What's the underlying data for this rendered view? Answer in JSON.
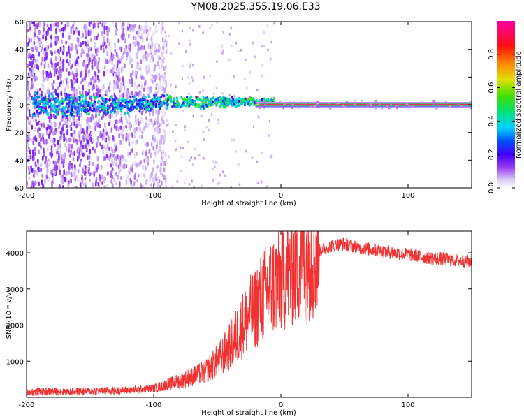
{
  "title": "YM08.2025.355.19.06.E33",
  "chart_data": [
    {
      "type": "heatmap",
      "xlabel": "Height of straight line (km)",
      "ylabel": "Frequency (Hz)",
      "xlim": [
        -200,
        150
      ],
      "ylim": [
        -60,
        60
      ],
      "xticks": [
        -200,
        -100,
        0,
        100
      ],
      "yticks": [
        -60,
        -40,
        -20,
        0,
        20,
        40,
        60
      ],
      "colorbar": {
        "label": "Normalized spectral amplitude",
        "range": [
          0.0,
          1.0
        ],
        "ticks": [
          0.0,
          0.2,
          0.4,
          0.6,
          0.8
        ],
        "tick_labels": [
          "0.0",
          "0.2",
          "0.4",
          "0.6",
          "0.8"
        ],
        "colormap": "rainbow (purple-blue-cyan-green-yellow-red-magenta)"
      },
      "features": [
        {
          "name": "diffuse scatter",
          "x_range": [
            -200,
            -100
          ],
          "freq_range": [
            -60,
            60
          ],
          "amplitude": 0.15
        },
        {
          "name": "broadening spectral band",
          "x_range": [
            -100,
            -20
          ],
          "center_hz": 0,
          "amplitude": 0.3
        },
        {
          "name": "narrow carrier line",
          "x_range": [
            -20,
            150
          ],
          "center_hz": 0,
          "amplitude": 0.95
        }
      ]
    },
    {
      "type": "line",
      "xlabel": "Height of straight line (km)",
      "ylabel": "SNR (10 * v/v)",
      "xlim": [
        -200,
        150
      ],
      "ylim": [
        0,
        4600
      ],
      "xticks": [
        -200,
        -100,
        0,
        100
      ],
      "yticks": [
        1000,
        2000,
        3000,
        4000
      ],
      "color": "#f03232",
      "series": [
        {
          "name": "SNR",
          "x": [
            -200,
            -150,
            -120,
            -100,
            -80,
            -60,
            -50,
            -40,
            -30,
            -20,
            -10,
            0,
            10,
            20,
            30,
            40,
            50,
            60,
            80,
            100,
            120,
            150
          ],
          "values": [
            150,
            170,
            200,
            250,
            450,
            700,
            1000,
            1400,
            2000,
            2500,
            3000,
            3300,
            3600,
            3850,
            4050,
            4200,
            4250,
            4150,
            4050,
            3950,
            3850,
            3750
          ]
        }
      ]
    }
  ]
}
